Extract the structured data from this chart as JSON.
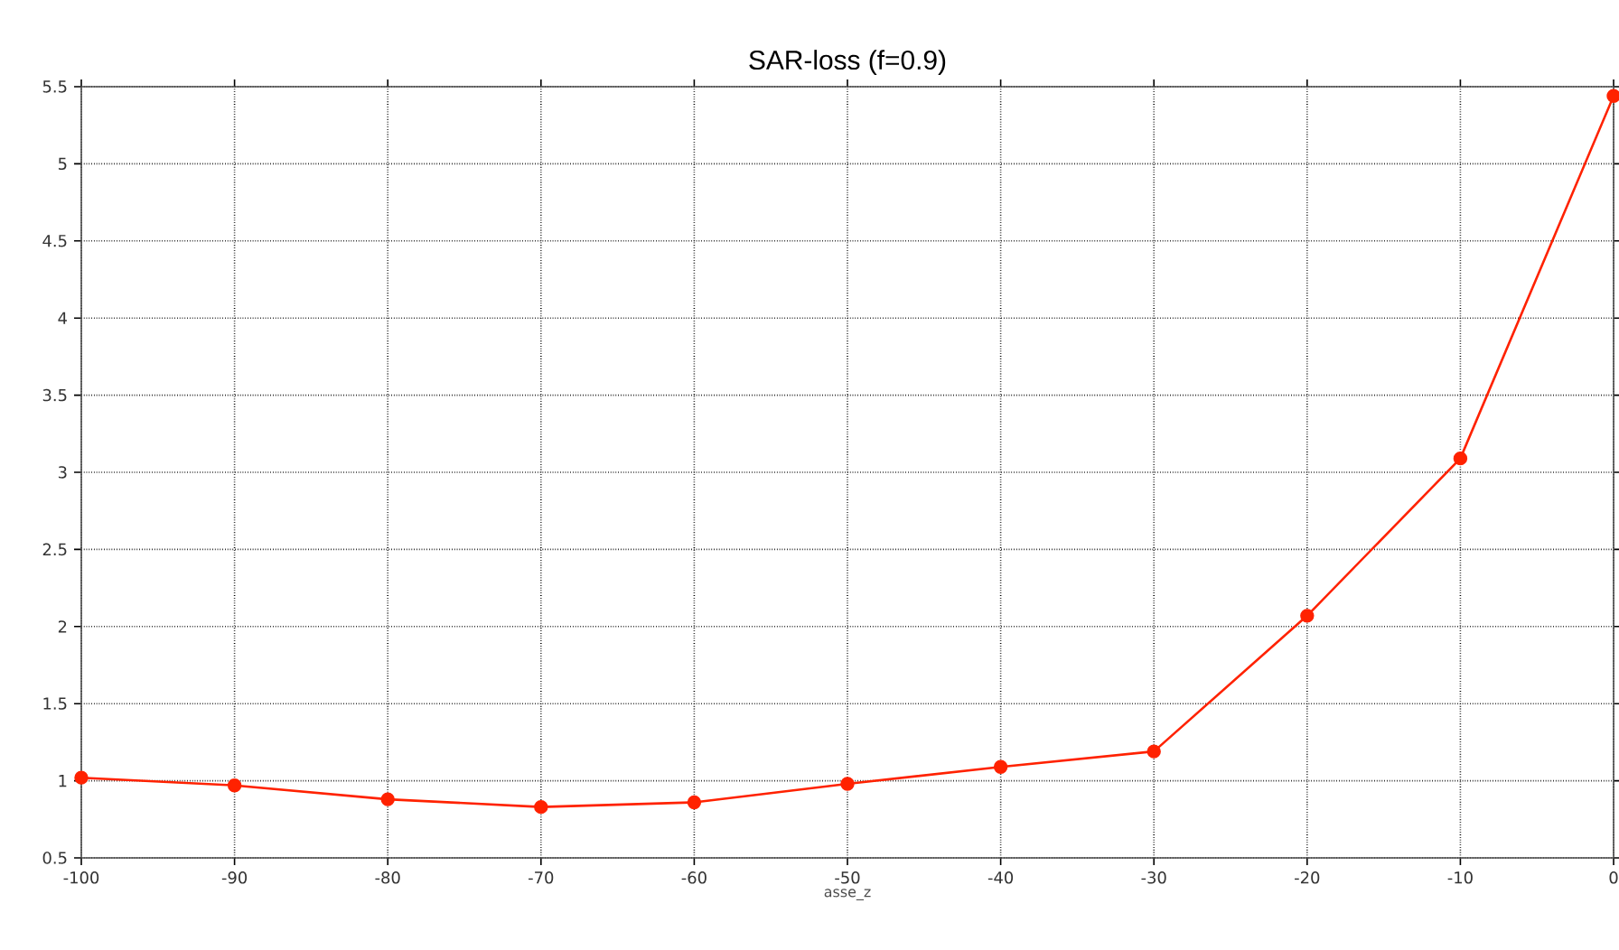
{
  "chart_data": {
    "type": "line",
    "title": "SAR-loss (f=0.9)",
    "xlabel": "asse_z",
    "x": [
      -100,
      -90,
      -80,
      -70,
      -60,
      -50,
      -40,
      -30,
      -20,
      -10,
      0
    ],
    "series": [
      {
        "color": "#ff2200",
        "values": [
          1.02,
          0.97,
          0.88,
          0.83,
          0.86,
          0.98,
          1.09,
          1.19,
          2.07,
          3.09,
          5.44
        ]
      }
    ],
    "xlim": [
      -100,
      0
    ],
    "xticks": [
      -100,
      -90,
      -80,
      -70,
      -60,
      -50,
      -40,
      -30,
      -20,
      -10,
      0
    ],
    "ylim": [
      0.5,
      5.5
    ],
    "yticks": [
      0.5,
      1,
      1.5,
      2,
      2.5,
      3,
      3.5,
      4,
      4.5,
      5,
      5.5
    ],
    "grid": true,
    "marker": "circle",
    "line_style": "solid"
  }
}
